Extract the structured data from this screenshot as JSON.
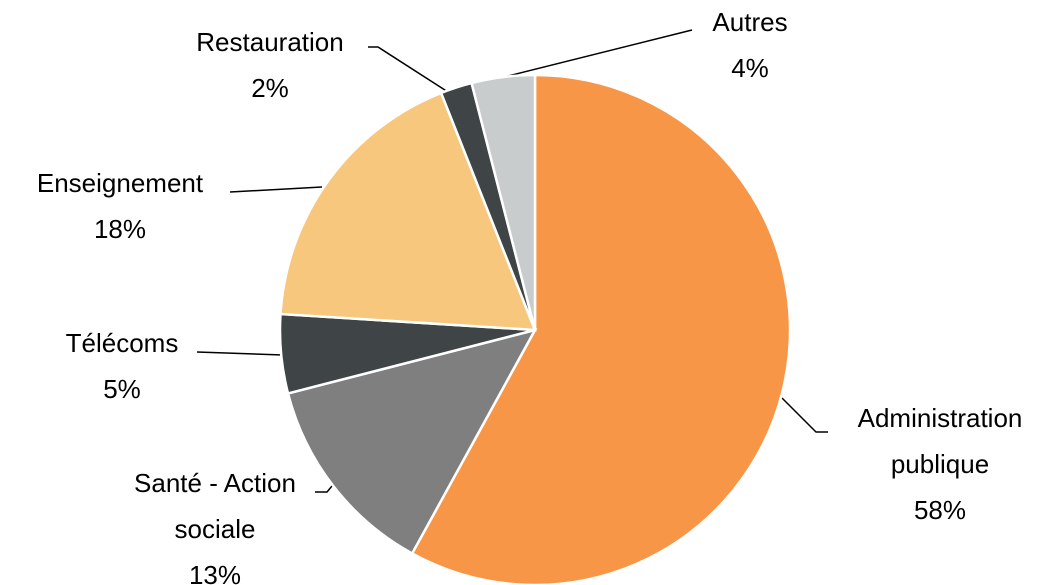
{
  "chart_data": {
    "type": "pie",
    "categories": [
      "Administration publique",
      "Santé - Action sociale",
      "Télécoms",
      "Enseignement",
      "Restauration",
      "Autres"
    ],
    "values": [
      58,
      13,
      5,
      18,
      2,
      4
    ],
    "value_labels": [
      "58%",
      "13%",
      "5%",
      "18%",
      "2%",
      "4%"
    ],
    "colors": [
      "#F79646",
      "#7F7F7F",
      "#3F4447",
      "#F8C77E",
      "#3F4447",
      "#C9CCCC"
    ]
  }
}
